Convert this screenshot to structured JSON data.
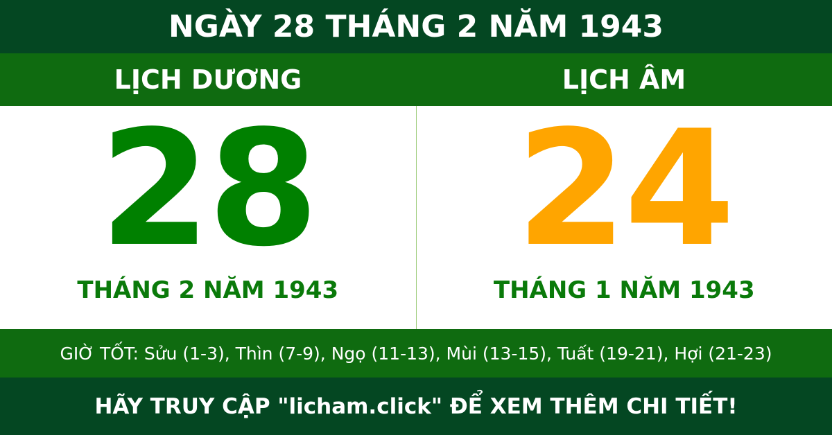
{
  "title": "NGÀY 28 THÁNG 2 NĂM 1943",
  "solar": {
    "label": "LỊCH DƯƠNG",
    "day": "28",
    "month_year": "THÁNG 2 NĂM 1943"
  },
  "lunar": {
    "label": "LỊCH ÂM",
    "day": "24",
    "month_year": "THÁNG 1 NĂM 1943"
  },
  "good_hours": "GIỜ TỐT: Sửu (1-3), Thìn (7-9), Ngọ (11-13), Mùi (13-15), Tuất (19-21), Hợi (21-23)",
  "footer": "HÃY TRUY CẬP \"licham.click\" ĐỂ XEM THÊM CHI TIẾT!",
  "colors": {
    "dark_green": "#044722",
    "green": "#0f6b10",
    "solar_day": "#008000",
    "lunar_day": "#ffa500"
  }
}
